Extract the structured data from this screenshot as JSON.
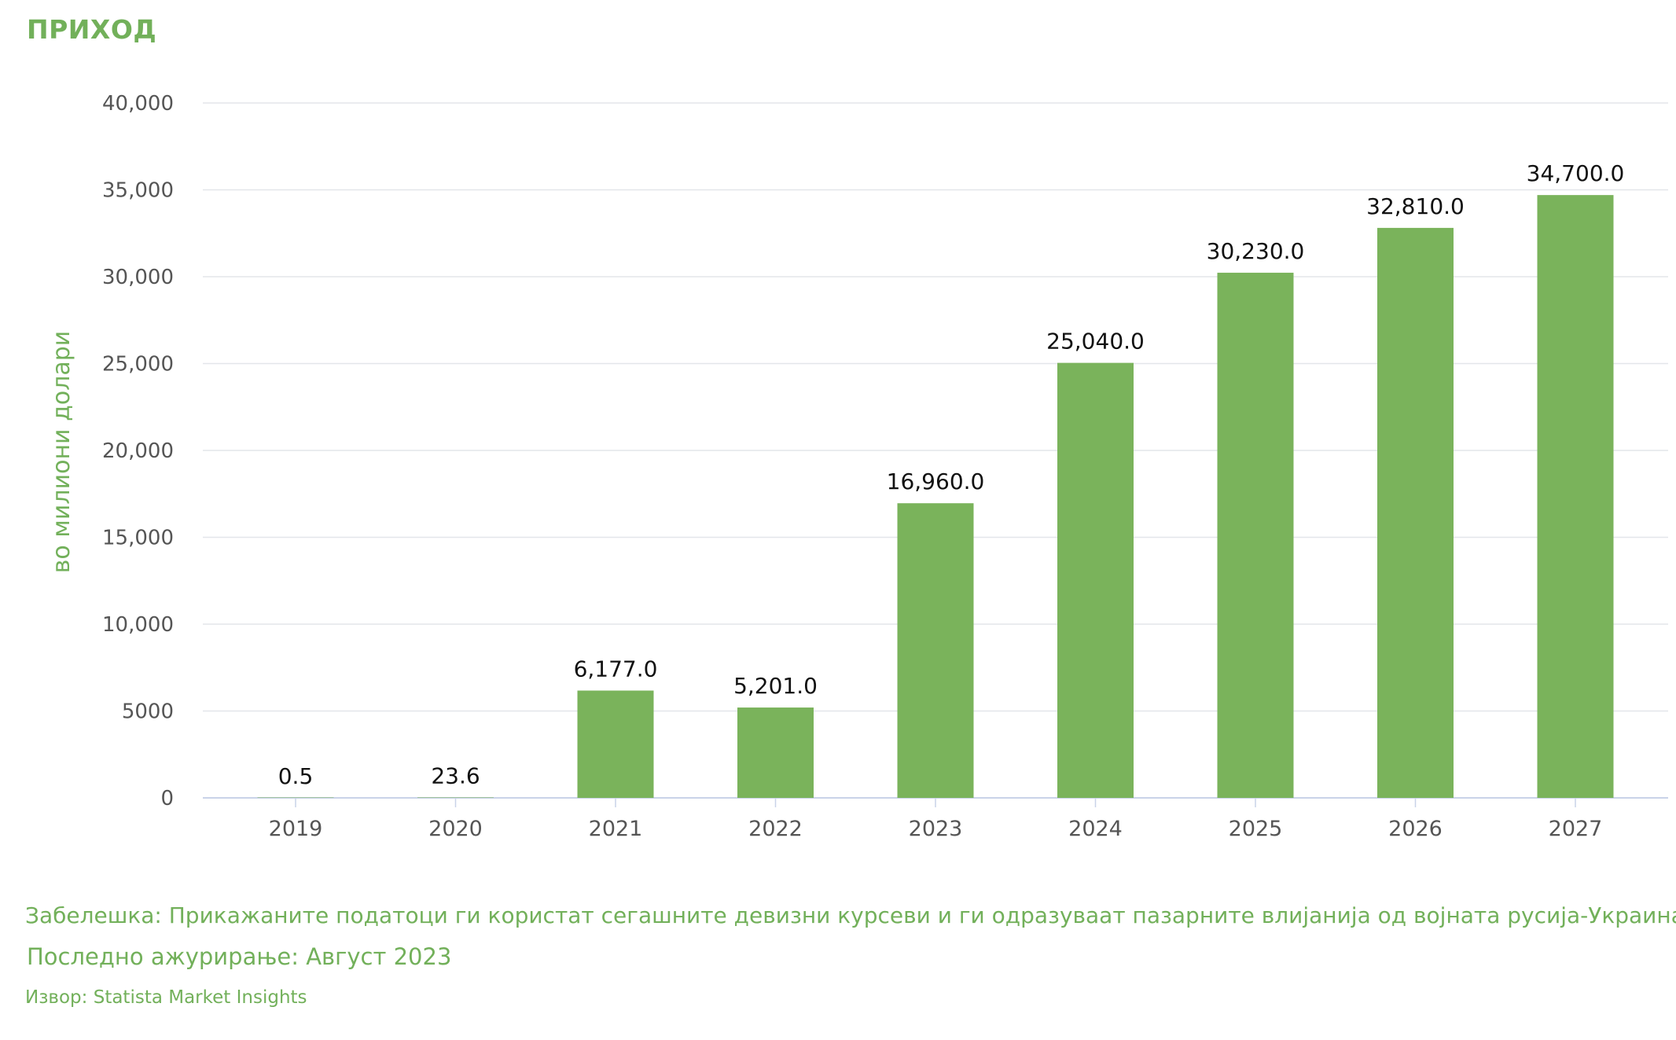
{
  "header": {
    "title": "ПРИХОД"
  },
  "chart_data": {
    "type": "bar",
    "categories": [
      "2019",
      "2020",
      "2021",
      "2022",
      "2023",
      "2024",
      "2025",
      "2026",
      "2027"
    ],
    "values": [
      0.5,
      23.6,
      6177.0,
      5201.0,
      16960.0,
      25040.0,
      30230.0,
      32810.0,
      34700.0
    ],
    "value_labels": [
      "0.5",
      "23.6",
      "6,177.0",
      "5,201.0",
      "16,960.0",
      "25,040.0",
      "30,230.0",
      "32,810.0",
      "34,700.0"
    ],
    "ylabel": "во милиони долари",
    "xlabel": "",
    "ylim": [
      0,
      40000
    ],
    "yticks": [
      0,
      5000,
      10000,
      15000,
      20000,
      25000,
      30000,
      35000,
      40000
    ],
    "ytick_labels": [
      "0",
      "5000",
      "10,000",
      "15,000",
      "20,000",
      "25,000",
      "30,000",
      "35,000",
      "40,000"
    ],
    "grid": true,
    "bar_color": "#7ab35b"
  },
  "footer": {
    "note": "Забелешка: Прикажаните податоци ги користат сегашните девизни курсеви и ги одразуваат пазарните влијанија од војната русија-Украина.",
    "updated": "Последно ажурирање: Август 2023",
    "source": "Извор: Statista Market Insights"
  },
  "colors": {
    "accent": "#72b05a",
    "bar": "#7ab35b",
    "grid": "#e3e6ea",
    "axis": "#c9d3e8"
  }
}
